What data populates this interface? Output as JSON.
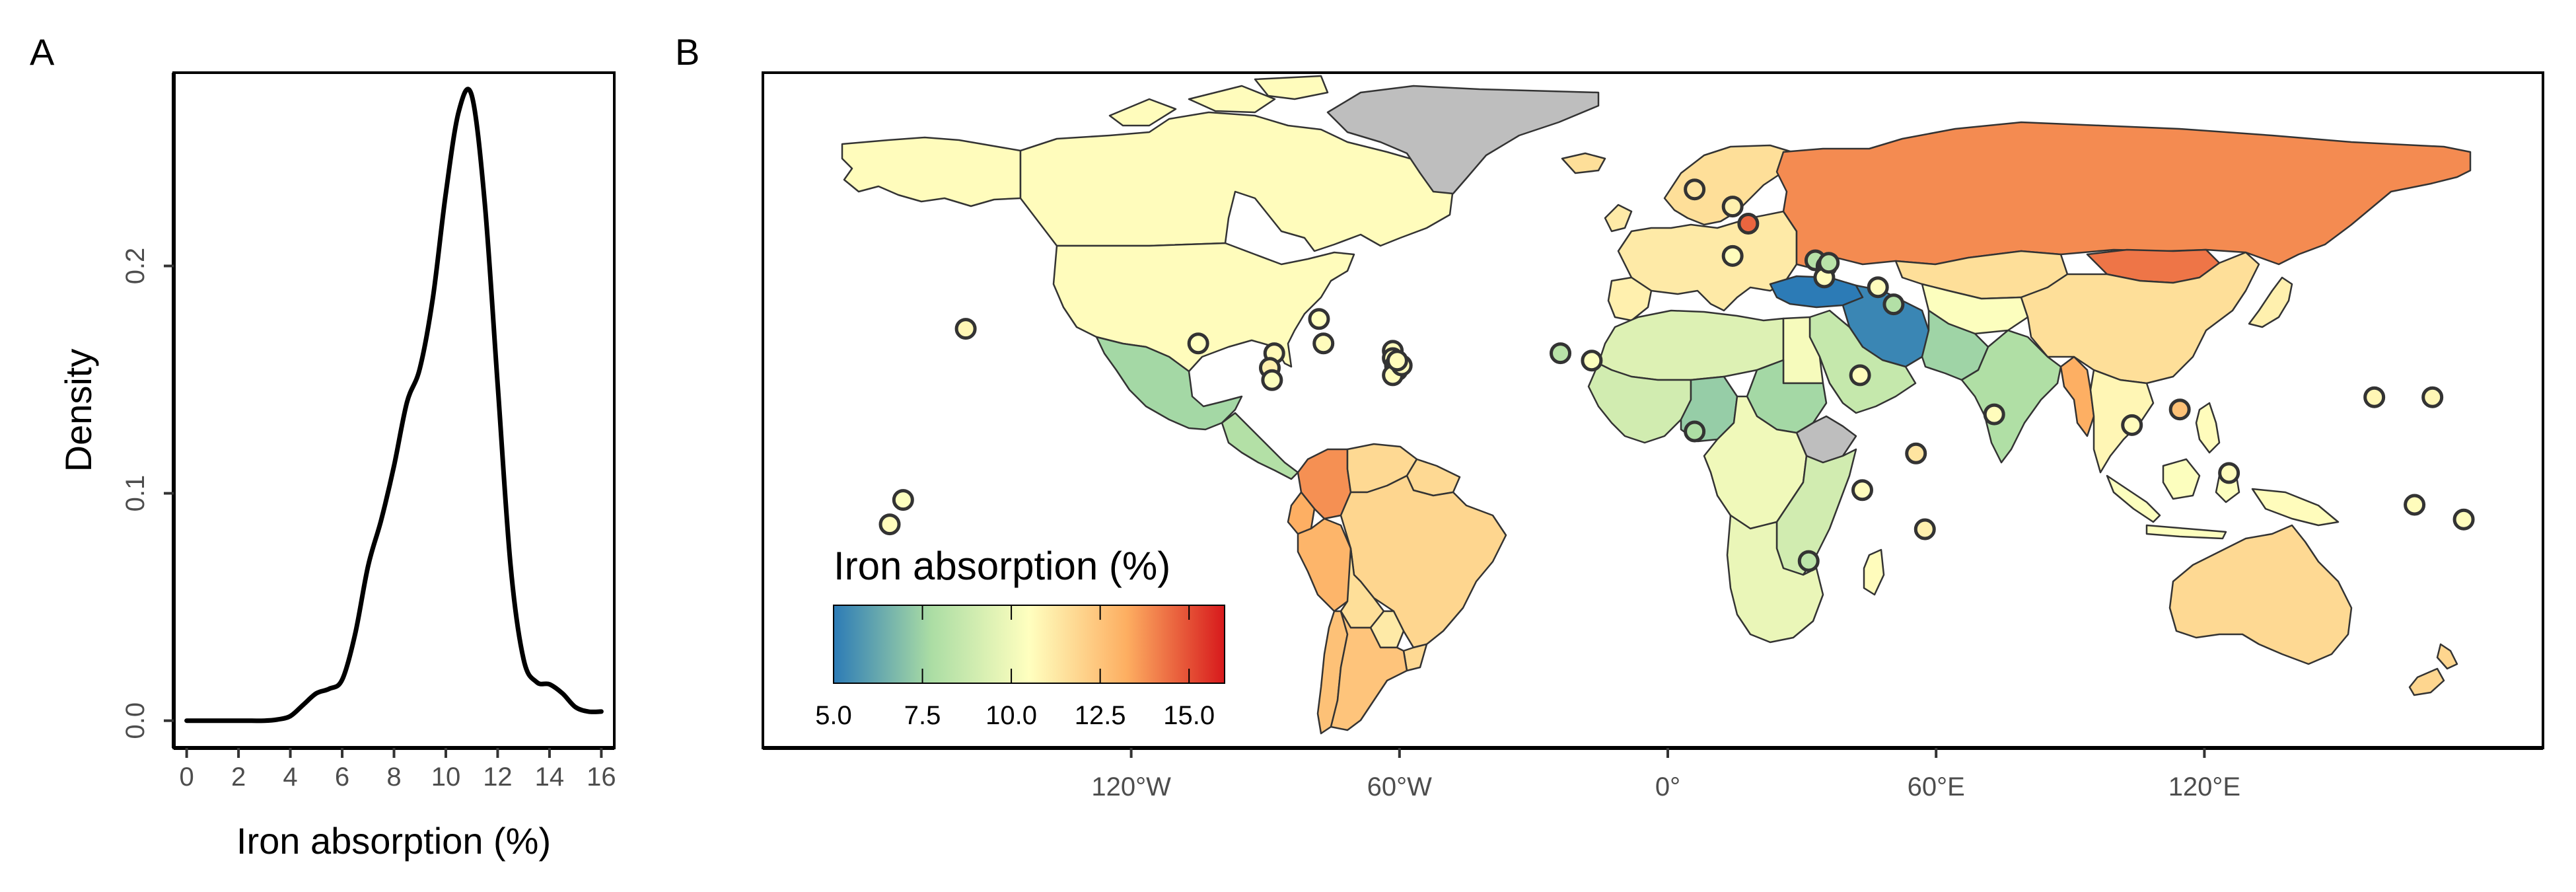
{
  "panels": {
    "a": "A",
    "b": "B"
  },
  "chart_data": [
    {
      "type": "line",
      "xlabel": "Iron absorption (%)",
      "ylabel": "Density",
      "xlim": [
        -0.5,
        16.5
      ],
      "ylim": [
        -0.012,
        0.285
      ],
      "xticks": [
        0,
        2,
        4,
        6,
        8,
        10,
        12,
        14,
        16
      ],
      "yticks": [
        0.0,
        0.1,
        0.2
      ],
      "ytick_labels": [
        "0.0",
        "0.1",
        "0.2"
      ],
      "grid": false,
      "series": [
        {
          "x": [
            0,
            1,
            2,
            3,
            3.5,
            4,
            4.5,
            5,
            5.5,
            6,
            6.5,
            7,
            7.5,
            8,
            8.5,
            9,
            9.5,
            10,
            10.5,
            11,
            11.5,
            12,
            12.5,
            13,
            13.5,
            14,
            14.5,
            15,
            15.5,
            16
          ],
          "y": [
            0.0,
            0.0,
            0.0,
            0.0,
            0.0005,
            0.002,
            0.007,
            0.012,
            0.014,
            0.018,
            0.038,
            0.068,
            0.088,
            0.112,
            0.14,
            0.155,
            0.186,
            0.232,
            0.268,
            0.275,
            0.228,
            0.148,
            0.068,
            0.027,
            0.017,
            0.016,
            0.012,
            0.006,
            0.004,
            0.004
          ]
        }
      ]
    },
    {
      "type": "map",
      "xticks": [
        -120,
        -60,
        0,
        60,
        120
      ],
      "xtick_labels": [
        "120°W",
        "60°W",
        "0°",
        "60°E",
        "120°E"
      ],
      "legend": {
        "title": "Iron absorption (%)",
        "placement": "bottom-left",
        "range": [
          5.0,
          16.0
        ],
        "ticks": [
          5.0,
          7.5,
          10.0,
          12.5,
          15.0
        ],
        "tick_labels": [
          "5.0",
          "7.5",
          "10.0",
          "12.5",
          "15.0"
        ],
        "colors": [
          "#2c7bb6",
          "#abdda4",
          "#ffffbf",
          "#fdae61",
          "#d7191c"
        ]
      },
      "no_data_color": "#bebebe",
      "regions": [
        {
          "name": "Alaska",
          "value": 10.6
        },
        {
          "name": "Canada",
          "value": 10.6
        },
        {
          "name": "Greenland",
          "value": null
        },
        {
          "name": "United States",
          "value": 10.6
        },
        {
          "name": "Mexico",
          "value": 7.6
        },
        {
          "name": "Central America",
          "value": 8.0
        },
        {
          "name": "Colombia",
          "value": 13.8
        },
        {
          "name": "Venezuela",
          "value": 11.8
        },
        {
          "name": "Guianas",
          "value": 11.8
        },
        {
          "name": "Ecuador",
          "value": 13.2
        },
        {
          "name": "Peru",
          "value": 13.0
        },
        {
          "name": "Brazil",
          "value": 11.9
        },
        {
          "name": "Bolivia",
          "value": 11.6
        },
        {
          "name": "Paraguay",
          "value": 11.2
        },
        {
          "name": "Chile",
          "value": 12.6
        },
        {
          "name": "Argentina",
          "value": 12.5
        },
        {
          "name": "Uruguay",
          "value": 11.8
        },
        {
          "name": "Iceland",
          "value": 11.6
        },
        {
          "name": "Scandinavia",
          "value": 11.6
        },
        {
          "name": "Europe",
          "value": 11.2
        },
        {
          "name": "Iberia",
          "value": 11.0
        },
        {
          "name": "Russia",
          "value": 13.9
        },
        {
          "name": "Mongolia",
          "value": 14.3
        },
        {
          "name": "Kazakhstan",
          "value": 11.6
        },
        {
          "name": "Central Asia",
          "value": 10.4
        },
        {
          "name": "China",
          "value": 11.6
        },
        {
          "name": "Japan",
          "value": 11.0
        },
        {
          "name": "Turkey",
          "value": 5.0
        },
        {
          "name": "Iran",
          "value": 5.3
        },
        {
          "name": "Afghanistan and Pakistan",
          "value": 7.5
        },
        {
          "name": "India",
          "value": 7.9
        },
        {
          "name": "Myanmar",
          "value": 13.2
        },
        {
          "name": "Southeast Asia",
          "value": 10.8
        },
        {
          "name": "Indonesia",
          "value": 10.4
        },
        {
          "name": "Philippines",
          "value": 10.6
        },
        {
          "name": "New Guinea",
          "value": 10.6
        },
        {
          "name": "Australia",
          "value": 11.8
        },
        {
          "name": "New Zealand",
          "value": 11.9
        },
        {
          "name": "Arabia",
          "value": 8.6
        },
        {
          "name": "North Africa",
          "value": 9.4
        },
        {
          "name": "Egypt",
          "value": 10.2
        },
        {
          "name": "West Africa",
          "value": 9.0
        },
        {
          "name": "Nigeria",
          "value": 7.3
        },
        {
          "name": "Sudan",
          "value": 7.6
        },
        {
          "name": "Ethiopia",
          "value": null
        },
        {
          "name": "Central Africa",
          "value": 10.0
        },
        {
          "name": "East Africa",
          "value": 9.0
        },
        {
          "name": "Southern Africa",
          "value": 9.8
        },
        {
          "name": "Madagascar",
          "value": 10.6
        }
      ],
      "sites": [
        {
          "lon": -105,
          "lat": 18,
          "value": 10.5
        },
        {
          "lon": -157,
          "lat": 21,
          "value": 10.8
        },
        {
          "lon": -171,
          "lat": -14,
          "value": 10.4
        },
        {
          "lon": -174,
          "lat": -19,
          "value": 10.6
        },
        {
          "lon": -88,
          "lat": 16,
          "value": 10.7
        },
        {
          "lon": -78,
          "lat": 23,
          "value": 10.5
        },
        {
          "lon": -77,
          "lat": 18,
          "value": 10.6
        },
        {
          "lon": -89,
          "lat": 13,
          "value": 11.0
        },
        {
          "lon": -88.5,
          "lat": 10.5,
          "value": 10.4
        },
        {
          "lon": -61.5,
          "lat": 16.5,
          "value": 10.6
        },
        {
          "lon": -61.5,
          "lat": 15,
          "value": 10.6
        },
        {
          "lon": -61,
          "lat": 13.5,
          "value": 10.6
        },
        {
          "lon": -60.5,
          "lat": 12.5,
          "value": 10.6
        },
        {
          "lon": -61.5,
          "lat": 11.5,
          "value": 10.6
        },
        {
          "lon": -59.5,
          "lat": 13.5,
          "value": 10.6
        },
        {
          "lon": -60.5,
          "lat": 14.5,
          "value": 10.6
        },
        {
          "lon": -24,
          "lat": 16,
          "value": 8.2
        },
        {
          "lon": -17,
          "lat": 14.5,
          "value": 10.4
        },
        {
          "lon": 6,
          "lat": 0,
          "value": 7.8
        },
        {
          "lon": 6,
          "lat": 49.5,
          "value": 11.4
        },
        {
          "lon": 14.5,
          "lat": 46,
          "value": 11.0
        },
        {
          "lon": 14.5,
          "lat": 35.9,
          "value": 10.6
        },
        {
          "lon": 18,
          "lat": 42.5,
          "value": 14.6
        },
        {
          "lon": 33,
          "lat": 35,
          "value": 8.1
        },
        {
          "lon": 35.5,
          "lat": 33.8,
          "value": 10.6
        },
        {
          "lon": 35,
          "lat": 31.5,
          "value": 10.6
        },
        {
          "lon": 36,
          "lat": 34.5,
          "value": 8.2
        },
        {
          "lon": 47,
          "lat": 29.5,
          "value": 10.6
        },
        {
          "lon": 50.5,
          "lat": 26,
          "value": 8.0
        },
        {
          "lon": 43,
          "lat": 11.5,
          "value": 10.6
        },
        {
          "lon": 43.5,
          "lat": -12,
          "value": 10.6
        },
        {
          "lon": 55.5,
          "lat": -4.5,
          "value": 11.4
        },
        {
          "lon": 57.5,
          "lat": -20,
          "value": 11.0
        },
        {
          "lon": 73,
          "lat": 3.5,
          "value": 10.6
        },
        {
          "lon": 31.5,
          "lat": -26.5,
          "value": 8.3
        },
        {
          "lon": 103.8,
          "lat": 1.3,
          "value": 10.6
        },
        {
          "lon": 114.5,
          "lat": 4.5,
          "value": 12.6
        },
        {
          "lon": 125.5,
          "lat": -8.5,
          "value": 10.6
        },
        {
          "lon": 158,
          "lat": 7,
          "value": 10.8
        },
        {
          "lon": 171,
          "lat": 7,
          "value": 10.8
        },
        {
          "lon": 167,
          "lat": -15,
          "value": 10.6
        },
        {
          "lon": 178,
          "lat": -18,
          "value": 10.6
        }
      ]
    }
  ]
}
